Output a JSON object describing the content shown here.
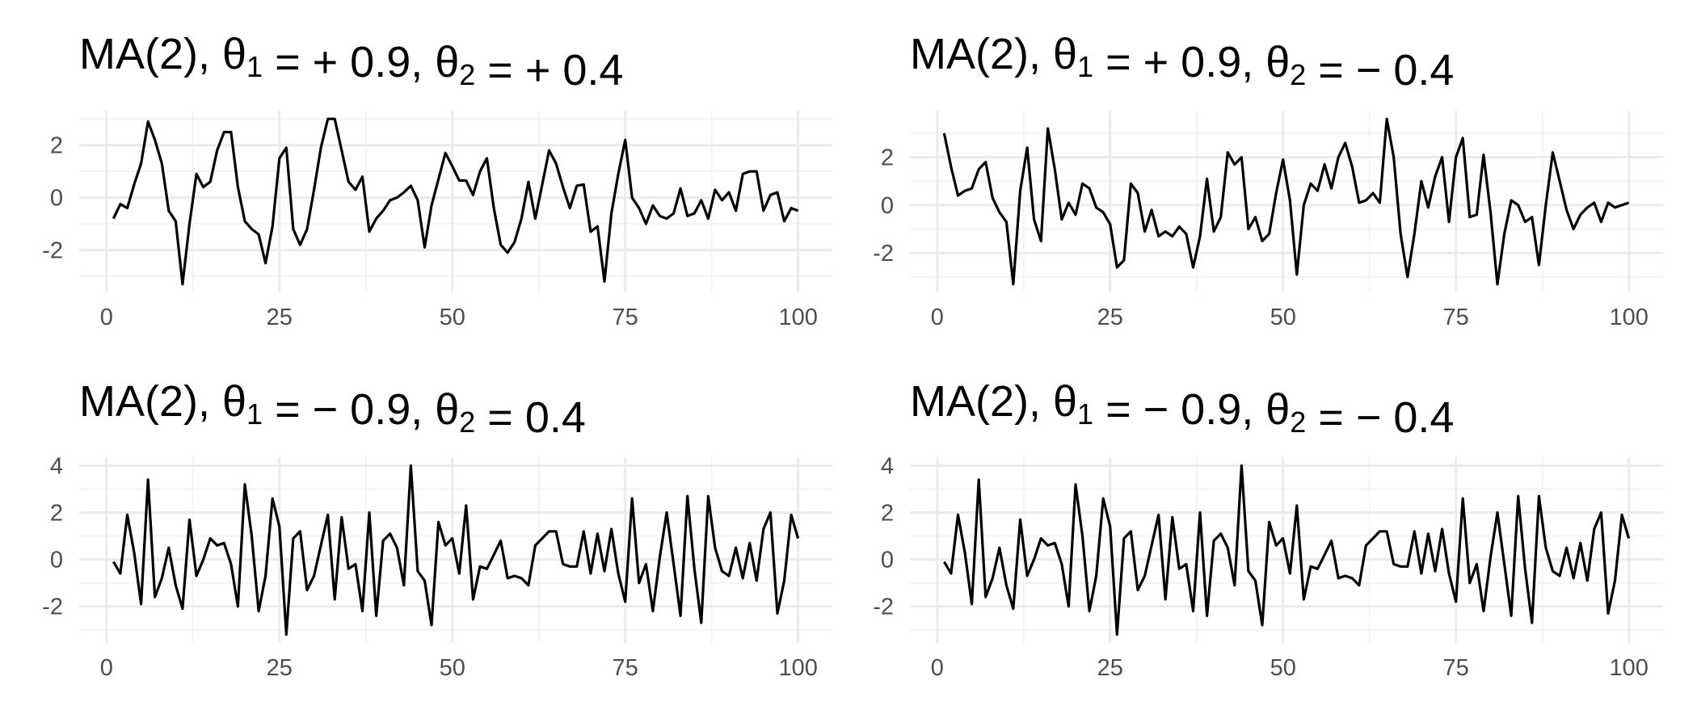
{
  "chart_data": [
    {
      "type": "line",
      "title": {
        "prefix": "MA(2), θ",
        "sub1": "1",
        "mid": " =  + 0.9, θ",
        "sub2": "2",
        "suffix": " =  + 0.4"
      },
      "xlim": [
        1,
        100
      ],
      "ylim": [
        -3.3,
        3.0
      ],
      "x_ticks": [
        0,
        25,
        50,
        75,
        100
      ],
      "y_ticks": [
        -2,
        0,
        2
      ],
      "x_tick_labels": [
        "0",
        "25",
        "50",
        "75",
        "100"
      ],
      "y_tick_labels": [
        "-2",
        "0",
        "2"
      ],
      "grid": true,
      "series": [
        {
          "color": "#000000",
          "values": [
            -0.8,
            -0.25,
            -0.4,
            0.5,
            1.3,
            2.9,
            2.2,
            1.3,
            -0.5,
            -0.9,
            -3.3,
            -1.0,
            0.9,
            0.4,
            0.6,
            1.8,
            2.5,
            2.5,
            0.4,
            -0.9,
            -1.2,
            -1.4,
            -2.5,
            -1.1,
            1.5,
            1.9,
            -1.2,
            -1.8,
            -1.2,
            0.3,
            1.9,
            3.0,
            3.0,
            1.8,
            0.6,
            0.3,
            0.8,
            -1.3,
            -0.8,
            -0.5,
            -0.1,
            0.0,
            0.2,
            0.45,
            -0.1,
            -1.9,
            -0.3,
            0.7,
            1.7,
            1.2,
            0.65,
            0.65,
            0.1,
            1.0,
            1.5,
            -0.4,
            -1.8,
            -2.1,
            -1.7,
            -0.8,
            0.6,
            -0.8,
            0.5,
            1.8,
            1.3,
            0.4,
            -0.4,
            0.45,
            0.5,
            -1.3,
            -1.1,
            -3.2,
            -0.6,
            0.9,
            2.2,
            0.0,
            -0.4,
            -1.0,
            -0.3,
            -0.7,
            -0.8,
            -0.6,
            0.35,
            -0.7,
            -0.6,
            -0.1,
            -0.8,
            0.3,
            -0.1,
            0.2,
            -0.5,
            0.9,
            1.0,
            1.0,
            -0.5,
            0.1,
            0.2,
            -0.9,
            -0.4,
            -0.5
          ]
        }
      ]
    },
    {
      "type": "line",
      "title": {
        "prefix": "MA(2), θ",
        "sub1": "1",
        "mid": " =  + 0.9, θ",
        "sub2": "2",
        "suffix": " =  − 0.4"
      },
      "xlim": [
        1,
        100
      ],
      "ylim": [
        -3.3,
        3.6
      ],
      "x_ticks": [
        0,
        25,
        50,
        75,
        100
      ],
      "y_ticks": [
        -2,
        0,
        2
      ],
      "x_tick_labels": [
        "0",
        "25",
        "50",
        "75",
        "100"
      ],
      "y_tick_labels": [
        "-2",
        "0",
        "2"
      ],
      "grid": true,
      "series": [
        {
          "color": "#000000",
          "values": [
            3.0,
            1.6,
            0.4,
            0.6,
            0.7,
            1.5,
            1.8,
            0.3,
            -0.3,
            -0.7,
            -3.3,
            0.6,
            2.4,
            -0.6,
            -1.5,
            3.2,
            1.5,
            -0.6,
            0.1,
            -0.4,
            0.9,
            0.7,
            -0.1,
            -0.3,
            -0.8,
            -2.6,
            -2.3,
            0.9,
            0.5,
            -1.1,
            -0.2,
            -1.3,
            -1.1,
            -1.3,
            -0.9,
            -1.2,
            -2.6,
            -1.3,
            1.1,
            -1.1,
            -0.5,
            2.2,
            1.7,
            2.0,
            -1.0,
            -0.5,
            -1.5,
            -1.2,
            0.5,
            1.9,
            0.2,
            -2.9,
            0.0,
            0.9,
            0.6,
            1.7,
            0.7,
            2.0,
            2.6,
            1.6,
            0.1,
            0.2,
            0.5,
            0.1,
            3.6,
            2.0,
            -1.2,
            -3.0,
            -1.2,
            1.0,
            -0.1,
            1.2,
            2.0,
            -0.7,
            2.0,
            2.8,
            -0.5,
            -0.4,
            2.1,
            -0.3,
            -3.3,
            -1.2,
            0.2,
            0.0,
            -0.7,
            -0.5,
            -2.5,
            0.0,
            2.2,
            1.0,
            -0.2,
            -1.0,
            -0.4,
            -0.1,
            0.1,
            -0.7,
            0.1,
            -0.1,
            0.0,
            0.1
          ]
        }
      ]
    },
    {
      "type": "line",
      "title": {
        "prefix": "MA(2), θ",
        "sub1": "1",
        "mid": " =  − 0.9, θ",
        "sub2": "2",
        "suffix": " = 0.4"
      },
      "xlim": [
        1,
        100
      ],
      "ylim": [
        -3.2,
        4.0
      ],
      "x_ticks": [
        0,
        25,
        50,
        75,
        100
      ],
      "y_ticks": [
        -2,
        0,
        2,
        4
      ],
      "x_tick_labels": [
        "0",
        "25",
        "50",
        "75",
        "100"
      ],
      "y_tick_labels": [
        "-2",
        "0",
        "2",
        "4"
      ],
      "grid": true,
      "series": [
        {
          "color": "#000000",
          "values": [
            -0.1,
            -0.6,
            1.9,
            0.3,
            -1.9,
            3.4,
            -1.6,
            -0.8,
            0.5,
            -1.1,
            -2.1,
            1.7,
            -0.7,
            0.0,
            0.9,
            0.6,
            0.7,
            -0.2,
            -2.0,
            3.2,
            1.0,
            -2.2,
            -0.7,
            2.6,
            1.4,
            -3.2,
            0.9,
            1.2,
            -1.3,
            -0.7,
            0.6,
            1.9,
            -1.7,
            1.8,
            -0.4,
            -0.2,
            -2.2,
            2.0,
            -2.4,
            0.8,
            1.1,
            0.5,
            -1.1,
            4.0,
            -0.5,
            -0.9,
            -2.8,
            1.6,
            0.6,
            0.9,
            -0.6,
            2.3,
            -1.7,
            -0.3,
            -0.4,
            0.2,
            0.8,
            -0.8,
            -0.7,
            -0.8,
            -1.1,
            0.6,
            0.9,
            1.2,
            1.2,
            -0.2,
            -0.3,
            -0.3,
            1.2,
            -0.6,
            1.1,
            -0.5,
            1.3,
            -0.6,
            -1.8,
            2.6,
            -1.0,
            -0.2,
            -2.2,
            0.1,
            2.0,
            -0.2,
            -2.4,
            2.7,
            -0.4,
            -2.7,
            2.7,
            0.5,
            -0.5,
            -0.7,
            0.5,
            -0.8,
            0.7,
            -0.9,
            1.3,
            2.0,
            -2.3,
            -0.9,
            1.9,
            0.9
          ]
        }
      ]
    },
    {
      "type": "line",
      "title": {
        "prefix": "MA(2), θ",
        "sub1": "1",
        "mid": " =  − 0.9, θ",
        "sub2": "2",
        "suffix": " =  − 0.4"
      },
      "xlim": [
        1,
        100
      ],
      "ylim": [
        -3.2,
        4.0
      ],
      "x_ticks": [
        0,
        25,
        50,
        75,
        100
      ],
      "y_ticks": [
        -2,
        0,
        2,
        4
      ],
      "x_tick_labels": [
        "0",
        "25",
        "50",
        "75",
        "100"
      ],
      "y_tick_labels": [
        "-2",
        "0",
        "2",
        "4"
      ],
      "grid": true,
      "series": [
        {
          "color": "#000000",
          "values": [
            -0.1,
            -0.6,
            1.9,
            0.3,
            -1.9,
            3.4,
            -1.6,
            -0.8,
            0.5,
            -1.1,
            -2.1,
            1.7,
            -0.7,
            0.0,
            0.9,
            0.6,
            0.7,
            -0.2,
            -2.0,
            3.2,
            1.0,
            -2.2,
            -0.7,
            2.6,
            1.4,
            -3.2,
            0.9,
            1.2,
            -1.3,
            -0.7,
            0.6,
            1.9,
            -1.7,
            1.8,
            -0.4,
            -0.2,
            -2.2,
            2.0,
            -2.4,
            0.8,
            1.1,
            0.5,
            -1.1,
            4.0,
            -0.5,
            -0.9,
            -2.8,
            1.6,
            0.6,
            0.9,
            -0.6,
            2.3,
            -1.7,
            -0.3,
            -0.4,
            0.2,
            0.8,
            -0.8,
            -0.7,
            -0.8,
            -1.1,
            0.6,
            0.9,
            1.2,
            1.2,
            -0.2,
            -0.3,
            -0.3,
            1.2,
            -0.6,
            1.1,
            -0.5,
            1.3,
            -0.6,
            -1.8,
            2.6,
            -1.0,
            -0.2,
            -2.2,
            0.1,
            2.0,
            -0.2,
            -2.4,
            2.7,
            -0.4,
            -2.7,
            2.7,
            0.5,
            -0.5,
            -0.7,
            0.5,
            -0.8,
            0.7,
            -0.9,
            1.3,
            2.0,
            -2.3,
            -0.9,
            1.9,
            0.9
          ]
        }
      ]
    }
  ]
}
